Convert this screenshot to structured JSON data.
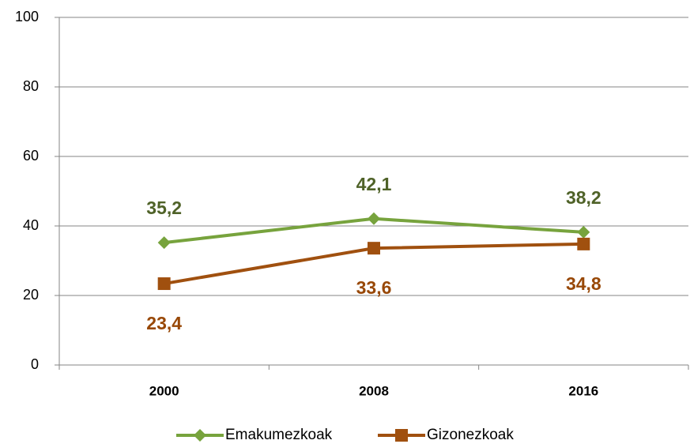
{
  "chart_data": {
    "type": "line",
    "categories": [
      "2000",
      "2008",
      "2016"
    ],
    "series": [
      {
        "name": "Emakumezkoak",
        "color": "#77a33d",
        "label_color": "#4f6228",
        "marker": "diamond",
        "label_position": "above",
        "values": [
          35.2,
          42.1,
          38.2
        ],
        "value_labels": [
          "35,2",
          "42,1",
          "38,2"
        ]
      },
      {
        "name": "Gizonezkoak",
        "color": "#a0500f",
        "label_color": "#984807",
        "marker": "square",
        "label_position": "below",
        "values": [
          23.4,
          33.6,
          34.8
        ],
        "value_labels": [
          "23,4",
          "33,6",
          "34,8"
        ]
      }
    ],
    "ylim": [
      0,
      100
    ],
    "yticks": [
      0,
      20,
      40,
      60,
      80,
      100
    ],
    "grid": true,
    "legend": "bottom"
  }
}
